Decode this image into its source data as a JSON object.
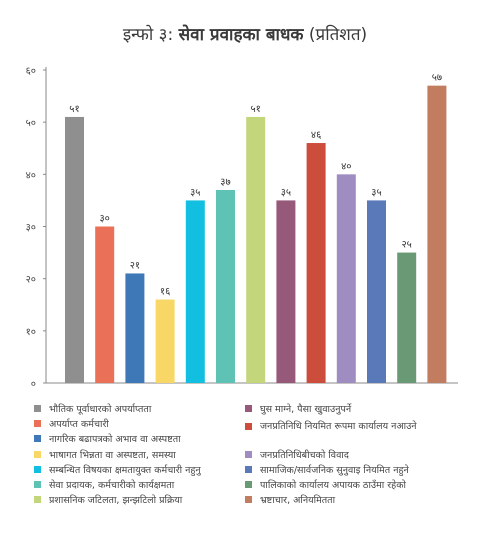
{
  "title": {
    "prefix": "इन्फो ३:",
    "main": "सेवा प्रवाहका बाधक",
    "suffix": "(प्रतिशत)"
  },
  "chart_data": {
    "type": "bar",
    "ylim": [
      0,
      60
    ],
    "yticks": [
      0,
      10,
      20,
      30,
      40,
      50,
      60
    ],
    "ytick_labels": [
      "०",
      "१०",
      "२०",
      "३०",
      "४०",
      "५०",
      "६०"
    ],
    "categories": [
      "भौतिक पूर्वाधारको अपर्याप्तता",
      "अपर्याप्त कर्मचारी",
      "नागरिक बढापत्रको अभाव वा अस्पष्टता",
      "भाषागत भिन्नता वा अस्पष्टता, समस्या",
      "सम्बन्धित विषयका क्षमतायुक्त कर्मचारी नहुनु",
      "सेवा प्रदायक, कर्मचारीको कार्यक्षमता",
      "प्रशासनिक जटिलता, झन्झटिलो प्रक्रिया",
      "घुस माग्ने, पैसा खुवाउनुपर्ने",
      "जनप्रतिनिधि नियमित रूपमा कार्यालय नआउने",
      "जनप्रतिनिधिबीचको विवाद",
      "सामाजिक/सार्वजनिक सुनुवाइ नियमित नहुने",
      "पालिकाको कार्यालय अपायक ठाउँमा रहेको",
      "भ्रष्टाचार, अनियमितता"
    ],
    "values": [
      51,
      30,
      21,
      16,
      35,
      37,
      51,
      35,
      46,
      40,
      35,
      25,
      57
    ],
    "value_labels": [
      "५१",
      "३०",
      "२१",
      "१६",
      "३५",
      "३७",
      "५१",
      "३५",
      "४६",
      "४०",
      "३५",
      "२५",
      "५७"
    ],
    "colors": [
      "#8f8f8f",
      "#ea7157",
      "#3f78b6",
      "#f8d767",
      "#12bfe0",
      "#5ec3b4",
      "#c3d67c",
      "#96597a",
      "#cd4d3c",
      "#9f8dc2",
      "#5a79b8",
      "#6a9a75",
      "#c27d60"
    ]
  }
}
